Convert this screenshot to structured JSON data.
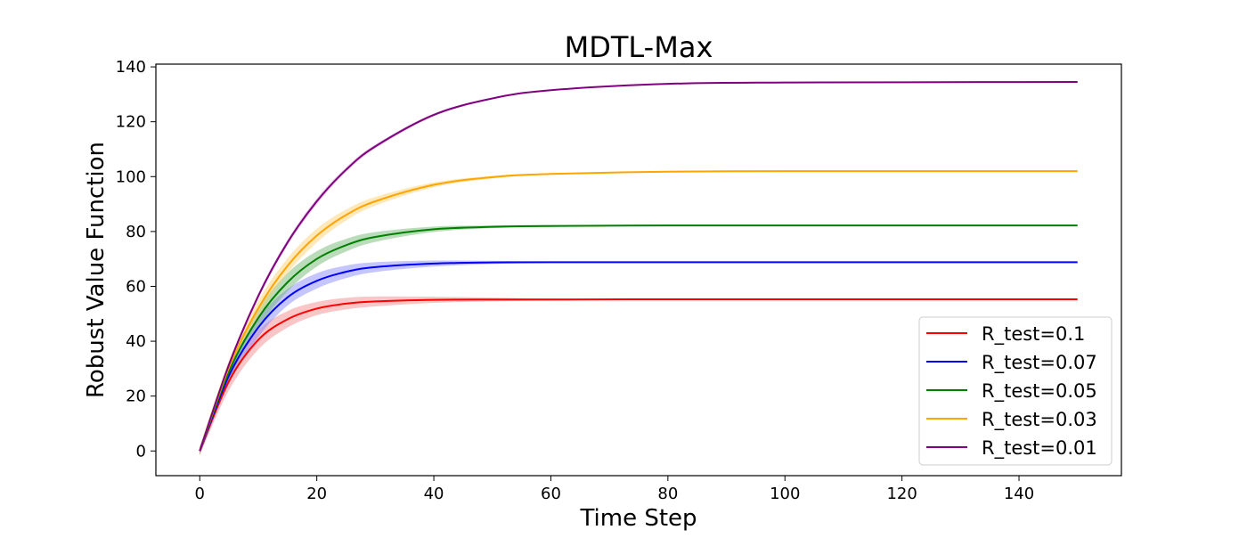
{
  "chart_data": {
    "type": "line",
    "title": "MDTL-Max",
    "xlabel": "Time Step",
    "ylabel": "Robust Value Function",
    "xlim": [
      -7.5,
      157.5
    ],
    "ylim": [
      -9,
      141
    ],
    "xticks": [
      0,
      20,
      40,
      60,
      80,
      100,
      120,
      140
    ],
    "yticks": [
      0,
      20,
      40,
      60,
      80,
      100,
      120,
      140
    ],
    "grid": false,
    "legend_position": "lower-right",
    "series": [
      {
        "name": "R_test=0.1",
        "color": "#ff0000",
        "band_color": "#f08080",
        "x": [
          0,
          5,
          10,
          15,
          20,
          25,
          30,
          40,
          50,
          60,
          80,
          100,
          120,
          150
        ],
        "y": [
          0,
          25.5,
          40.5,
          48.0,
          51.9,
          53.7,
          54.5,
          55.1,
          55.2,
          55.2,
          55.3,
          55.3,
          55.3,
          55.3
        ],
        "upper": [
          1.5,
          28.8,
          44.0,
          51.0,
          54.3,
          55.8,
          56.3,
          56.2,
          55.9,
          55.6,
          55.4,
          55.3,
          55.3,
          55.3
        ],
        "lower": [
          -1.5,
          22.2,
          37.0,
          45.0,
          49.5,
          51.6,
          52.7,
          54.0,
          54.5,
          54.8,
          55.2,
          55.3,
          55.3,
          55.3
        ]
      },
      {
        "name": "R_test=0.07",
        "color": "#0000ff",
        "band_color": "#8080ff",
        "x": [
          0,
          5,
          10,
          15,
          20,
          25,
          30,
          40,
          50,
          60,
          80,
          100,
          120,
          150
        ],
        "y": [
          0,
          27.5,
          45.0,
          56.0,
          62.0,
          65.3,
          67.0,
          68.3,
          68.7,
          68.8,
          68.8,
          68.8,
          68.8,
          68.8
        ],
        "upper": [
          1.5,
          30.5,
          48.5,
          59.0,
          64.8,
          67.6,
          68.8,
          69.4,
          69.3,
          69.1,
          68.9,
          68.8,
          68.8,
          68.8
        ],
        "lower": [
          -1.5,
          24.5,
          41.5,
          53.0,
          59.2,
          63.0,
          65.2,
          67.2,
          68.1,
          68.5,
          68.7,
          68.8,
          68.8,
          68.8
        ]
      },
      {
        "name": "R_test=0.05",
        "color": "#008000",
        "band_color": "#66b266",
        "x": [
          0,
          5,
          10,
          15,
          20,
          25,
          30,
          40,
          50,
          60,
          80,
          100,
          120,
          150
        ],
        "y": [
          0,
          29.0,
          48.5,
          61.5,
          70.0,
          75.0,
          78.0,
          80.8,
          81.7,
          82.0,
          82.2,
          82.2,
          82.2,
          82.2
        ],
        "upper": [
          1.5,
          32.0,
          52.0,
          64.8,
          72.8,
          77.3,
          79.8,
          81.8,
          82.2,
          82.3,
          82.3,
          82.2,
          82.2,
          82.2
        ],
        "lower": [
          -1.5,
          26.0,
          45.0,
          58.2,
          67.2,
          72.7,
          76.2,
          79.8,
          81.2,
          81.7,
          82.1,
          82.2,
          82.2,
          82.2
        ]
      },
      {
        "name": "R_test=0.03",
        "color": "#ffa500",
        "band_color": "#ffcc66",
        "x": [
          0,
          5,
          10,
          15,
          20,
          25,
          30,
          40,
          50,
          60,
          80,
          100,
          120,
          150
        ],
        "y": [
          0,
          30.5,
          52.0,
          67.5,
          78.5,
          86.0,
          91.0,
          97.0,
          99.8,
          101.0,
          101.8,
          102.0,
          102.0,
          102.0
        ],
        "upper": [
          1.5,
          33.0,
          54.8,
          70.2,
          81.0,
          88.0,
          92.6,
          97.9,
          100.3,
          101.2,
          101.9,
          102.0,
          102.0,
          102.0
        ],
        "lower": [
          -1.5,
          28.0,
          49.2,
          64.8,
          76.0,
          84.0,
          89.4,
          96.1,
          99.3,
          100.7,
          101.7,
          102.0,
          102.0,
          102.0
        ]
      },
      {
        "name": "R_test=0.01",
        "color": "#800080",
        "band_color": "#c080c0",
        "x": [
          0,
          5,
          10,
          15,
          20,
          25,
          30,
          40,
          50,
          60,
          80,
          100,
          120,
          150
        ],
        "y": [
          0,
          31.5,
          56.5,
          76.0,
          91.0,
          102.5,
          111.0,
          122.5,
          128.5,
          131.5,
          133.8,
          134.3,
          134.4,
          134.5
        ],
        "upper": [
          1.0,
          32.5,
          57.5,
          77.0,
          92.0,
          103.3,
          111.7,
          123.0,
          128.8,
          131.7,
          133.9,
          134.3,
          134.4,
          134.5
        ],
        "lower": [
          -1.0,
          30.5,
          55.5,
          75.0,
          90.0,
          101.7,
          110.3,
          122.0,
          128.2,
          131.3,
          133.7,
          134.3,
          134.4,
          134.5
        ]
      }
    ]
  }
}
